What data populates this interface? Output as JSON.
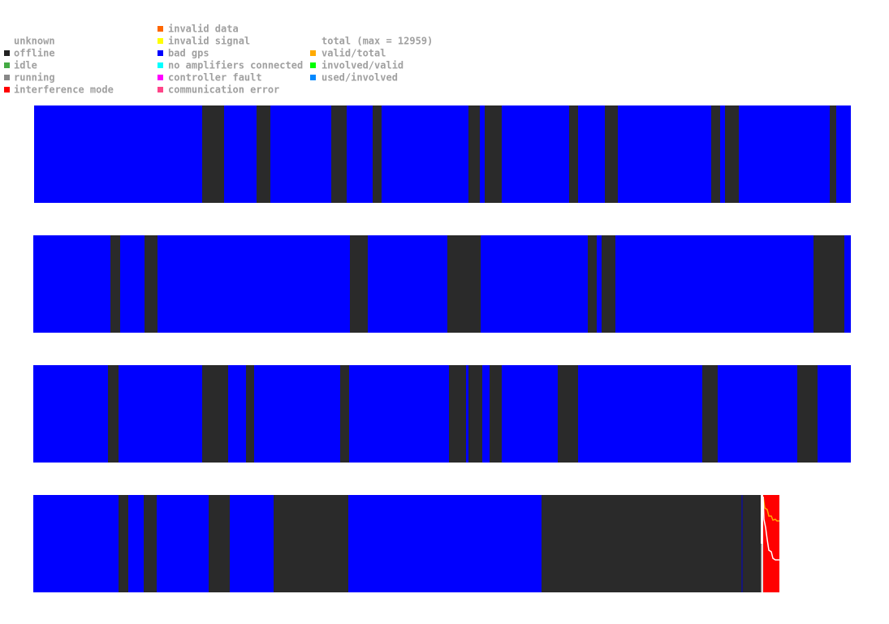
{
  "legend": {
    "column1": [
      "unknown",
      "offline",
      "idle",
      "running",
      "interference mode"
    ],
    "column2": [
      "invalid data",
      "invalid signal",
      "bad gps",
      "no amplifiers connected",
      "controller fault",
      "communication error"
    ],
    "column3": [
      "total (max = 12959)",
      "valid/total",
      "involved/valid",
      "used/involved"
    ]
  }
}
